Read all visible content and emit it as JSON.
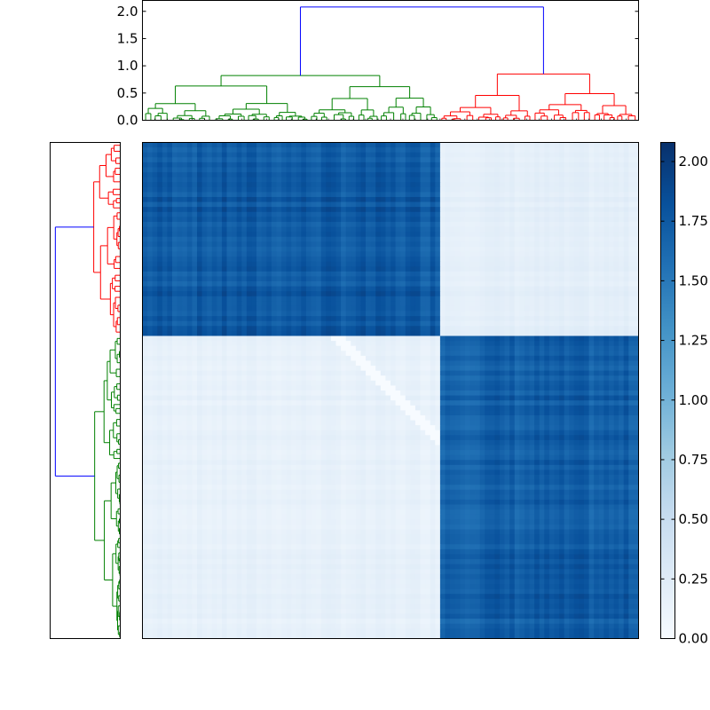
{
  "chart_data": [
    {
      "type": "dendrogram",
      "role": "column dendrogram (top)",
      "ylim": [
        0,
        2.2
      ],
      "yticks": [
        "0.0",
        "0.5",
        "1.0",
        "1.5",
        "2.0"
      ],
      "root_height": 2.08,
      "clusters": [
        {
          "color": "#008000",
          "leaf_span": [
            0,
            0.6
          ],
          "merge_height": 0.82
        },
        {
          "color": "#ff0000",
          "leaf_span": [
            0.6,
            1.0
          ],
          "merge_height": 0.85
        }
      ],
      "link_color_root": "#0000ff"
    },
    {
      "type": "dendrogram",
      "role": "row dendrogram (left)",
      "root_height": 2.08,
      "clusters": [
        {
          "color": "#ff0000",
          "leaf_span": [
            0,
            0.39
          ]
        },
        {
          "color": "#008000",
          "leaf_span": [
            0.39,
            1.0
          ]
        }
      ],
      "link_color_root": "#0000ff"
    },
    {
      "type": "heatmap",
      "role": "distance matrix",
      "colormap": "Blues",
      "value_range": [
        0,
        2.08
      ],
      "blocks": [
        {
          "rows": [
            0,
            0.39
          ],
          "cols": [
            0,
            0.6
          ],
          "value": 1.75
        },
        {
          "rows": [
            0,
            0.39
          ],
          "cols": [
            0.6,
            1.0
          ],
          "value": 0.15
        },
        {
          "rows": [
            0.39,
            1.0
          ],
          "cols": [
            0,
            0.6
          ],
          "value": 0.12
        },
        {
          "rows": [
            0.39,
            1.0
          ],
          "cols": [
            0.6,
            1.0
          ],
          "value": 1.72
        }
      ],
      "diagonal_value": 0.0
    },
    {
      "type": "colorbar",
      "ticks": [
        "0.00",
        "0.25",
        "0.50",
        "0.75",
        "1.00",
        "1.25",
        "1.50",
        "1.75",
        "2.00"
      ],
      "range": [
        0,
        2.08
      ]
    }
  ]
}
